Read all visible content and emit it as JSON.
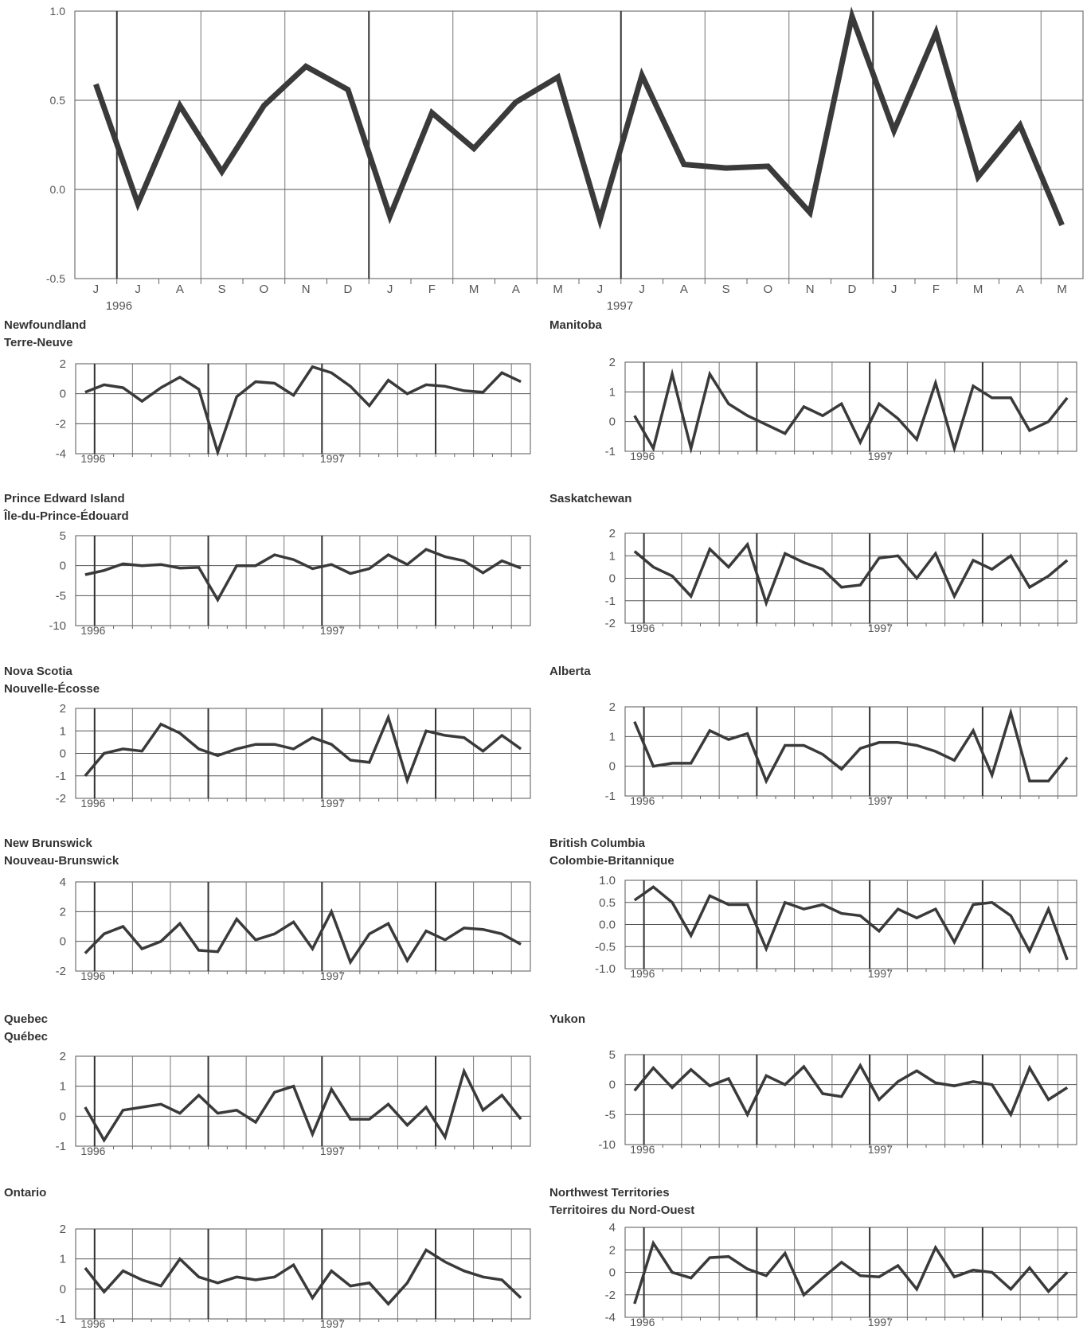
{
  "chart_data": [
    {
      "type": "line",
      "title": "",
      "categories": [
        "J",
        "J",
        "A",
        "S",
        "O",
        "N",
        "D",
        "J",
        "F",
        "M",
        "A",
        "M",
        "J",
        "J",
        "A",
        "S",
        "O",
        "N",
        "D",
        "J",
        "F",
        "M",
        "A",
        "M"
      ],
      "year_labels": [
        "1996",
        "1997"
      ],
      "ylim": [
        -0.5,
        1.0
      ],
      "yticks": [
        "1.0",
        "0.5",
        "0.0",
        "-0.5"
      ],
      "ytick_values": [
        1.0,
        0.5,
        0.0,
        -0.5
      ],
      "values": [
        0.59,
        -0.08,
        0.47,
        0.1,
        0.47,
        0.69,
        0.56,
        -0.15,
        0.43,
        0.23,
        0.49,
        0.63,
        -0.17,
        0.64,
        0.14,
        0.12,
        0.13,
        -0.13,
        0.97,
        0.33,
        0.88,
        0.07,
        0.36,
        -0.2
      ],
      "grid": true,
      "major_gridlines_after": [
        1,
        7,
        13,
        19
      ]
    },
    {
      "type": "line",
      "title": [
        "Newfoundland",
        "Terre-Neuve"
      ],
      "year_labels": [
        "1996",
        "1997"
      ],
      "ylim": [
        -4,
        2
      ],
      "yticks": [
        "2",
        "0",
        "-2",
        "-4"
      ],
      "ytick_values": [
        2,
        0,
        -2,
        -4
      ],
      "values": [
        0.1,
        0.6,
        0.4,
        -0.5,
        0.4,
        1.1,
        0.3,
        -3.9,
        -0.2,
        0.8,
        0.7,
        -0.1,
        1.8,
        1.4,
        0.5,
        -0.8,
        0.9,
        0.0,
        0.6,
        0.5,
        0.2,
        0.1,
        1.4,
        0.8
      ],
      "grid": true,
      "major_gridlines_after": [
        1,
        7,
        13,
        19
      ]
    },
    {
      "type": "line",
      "title": [
        "Manitoba"
      ],
      "year_labels": [
        "1996",
        "1997"
      ],
      "ylim": [
        -1,
        2
      ],
      "yticks": [
        "2",
        "1",
        "0",
        "-1"
      ],
      "ytick_values": [
        2,
        1,
        0,
        -1
      ],
      "values": [
        0.2,
        -0.9,
        1.6,
        -0.9,
        1.6,
        0.6,
        0.2,
        -0.1,
        -0.4,
        0.5,
        0.2,
        0.6,
        -0.7,
        0.6,
        0.1,
        -0.6,
        1.3,
        -0.9,
        1.2,
        0.8,
        0.8,
        -0.3,
        0.0,
        0.8
      ],
      "grid": true,
      "major_gridlines_after": [
        1,
        7,
        13,
        19
      ]
    },
    {
      "type": "line",
      "title": [
        "Prince Edward Island",
        "Île-du-Prince-Édouard"
      ],
      "year_labels": [
        "1996",
        "1997"
      ],
      "ylim": [
        -10,
        5
      ],
      "yticks": [
        "5",
        "0",
        "-5",
        "-10"
      ],
      "ytick_values": [
        5,
        0,
        -5,
        -10
      ],
      "values": [
        -1.5,
        -0.8,
        0.3,
        0.0,
        0.2,
        -0.4,
        -0.3,
        -5.7,
        0.0,
        0.0,
        1.8,
        1.0,
        -0.5,
        0.2,
        -1.3,
        -0.5,
        1.8,
        0.2,
        2.7,
        1.5,
        0.8,
        -1.2,
        0.8,
        -0.4
      ],
      "grid": true,
      "major_gridlines_after": [
        1,
        7,
        13,
        19
      ]
    },
    {
      "type": "line",
      "title": [
        "Saskatchewan"
      ],
      "year_labels": [
        "1996",
        "1997"
      ],
      "ylim": [
        -2,
        2
      ],
      "yticks": [
        "2",
        "1",
        "0",
        "-1",
        "-2"
      ],
      "ytick_values": [
        2,
        1,
        0,
        -1,
        -2
      ],
      "values": [
        1.2,
        0.5,
        0.1,
        -0.8,
        1.3,
        0.5,
        1.5,
        -1.1,
        1.1,
        0.7,
        0.4,
        -0.4,
        -0.3,
        0.9,
        1.0,
        0.0,
        1.1,
        -0.8,
        0.8,
        0.4,
        1.0,
        -0.4,
        0.1,
        0.8
      ],
      "grid": true,
      "major_gridlines_after": [
        1,
        7,
        13,
        19
      ]
    },
    {
      "type": "line",
      "title": [
        "Nova Scotia",
        "Nouvelle-Écosse"
      ],
      "year_labels": [
        "1996",
        "1997"
      ],
      "ylim": [
        -2,
        2
      ],
      "yticks": [
        "2",
        "1",
        "0",
        "-1",
        "-2"
      ],
      "ytick_values": [
        2,
        1,
        0,
        -1,
        -2
      ],
      "values": [
        -1.0,
        0.0,
        0.2,
        0.1,
        1.3,
        0.9,
        0.2,
        -0.1,
        0.2,
        0.4,
        0.4,
        0.2,
        0.7,
        0.4,
        -0.3,
        -0.4,
        1.6,
        -1.2,
        1.0,
        0.8,
        0.7,
        0.1,
        0.8,
        0.2
      ],
      "grid": true,
      "major_gridlines_after": [
        1,
        7,
        13,
        19
      ]
    },
    {
      "type": "line",
      "title": [
        "Alberta"
      ],
      "year_labels": [
        "1996",
        "1997"
      ],
      "ylim": [
        -1,
        2
      ],
      "yticks": [
        "2",
        "1",
        "0",
        "-1"
      ],
      "ytick_values": [
        2,
        1,
        0,
        -1
      ],
      "values": [
        1.5,
        0.0,
        0.1,
        0.1,
        1.2,
        0.9,
        1.1,
        -0.5,
        0.7,
        0.7,
        0.4,
        -0.1,
        0.6,
        0.8,
        0.8,
        0.7,
        0.5,
        0.2,
        1.2,
        -0.3,
        1.8,
        -0.5,
        -0.5,
        0.3
      ],
      "grid": true,
      "major_gridlines_after": [
        1,
        7,
        13,
        19
      ]
    },
    {
      "type": "line",
      "title": [
        "New Brunswick",
        "Nouveau-Brunswick"
      ],
      "year_labels": [
        "1996",
        "1997"
      ],
      "ylim": [
        -2,
        4
      ],
      "yticks": [
        "4",
        "2",
        "0",
        "-2"
      ],
      "ytick_values": [
        4,
        2,
        0,
        -2
      ],
      "values": [
        -0.8,
        0.5,
        1.0,
        -0.5,
        0.0,
        1.2,
        -0.6,
        -0.7,
        1.5,
        0.1,
        0.5,
        1.3,
        -0.5,
        2.0,
        -1.4,
        0.5,
        1.2,
        -1.3,
        0.7,
        0.1,
        0.9,
        0.8,
        0.5,
        -0.2
      ],
      "grid": true,
      "major_gridlines_after": [
        1,
        7,
        13,
        19
      ]
    },
    {
      "type": "line",
      "title": [
        "British Columbia",
        "Colombie-Britannique"
      ],
      "year_labels": [
        "1996",
        "1997"
      ],
      "ylim": [
        -1.0,
        1.0
      ],
      "yticks": [
        "1.0",
        "0.5",
        "0.0",
        "-0.5",
        "-1.0"
      ],
      "ytick_values": [
        1.0,
        0.5,
        0.0,
        -0.5,
        -1.0
      ],
      "values": [
        0.55,
        0.85,
        0.5,
        -0.25,
        0.65,
        0.45,
        0.45,
        -0.55,
        0.5,
        0.35,
        0.45,
        0.25,
        0.2,
        -0.15,
        0.35,
        0.15,
        0.35,
        -0.4,
        0.45,
        0.5,
        0.2,
        -0.6,
        0.35,
        -0.8
      ],
      "grid": true,
      "major_gridlines_after": [
        1,
        7,
        13,
        19
      ]
    },
    {
      "type": "line",
      "title": [
        "Quebec",
        "Québec"
      ],
      "year_labels": [
        "1996",
        "1997"
      ],
      "ylim": [
        -1,
        2
      ],
      "yticks": [
        "2",
        "1",
        "0",
        "-1"
      ],
      "ytick_values": [
        2,
        1,
        0,
        -1
      ],
      "values": [
        0.3,
        -0.8,
        0.2,
        0.3,
        0.4,
        0.1,
        0.7,
        0.1,
        0.2,
        -0.2,
        0.8,
        1.0,
        -0.6,
        0.9,
        -0.1,
        -0.1,
        0.4,
        -0.3,
        0.3,
        -0.7,
        1.5,
        0.2,
        0.7,
        -0.1
      ],
      "grid": true,
      "major_gridlines_after": [
        1,
        7,
        13,
        19
      ]
    },
    {
      "type": "line",
      "title": [
        "Yukon"
      ],
      "year_labels": [
        "1996",
        "1997"
      ],
      "ylim": [
        -10,
        5
      ],
      "yticks": [
        "5",
        "0",
        "-5",
        "-10"
      ],
      "ytick_values": [
        5,
        0,
        -5,
        -10
      ],
      "values": [
        -1.0,
        2.8,
        -0.5,
        2.5,
        -0.2,
        1.0,
        -5.0,
        1.5,
        0.0,
        3.0,
        -1.5,
        -2.0,
        3.2,
        -2.5,
        0.5,
        2.3,
        0.3,
        -0.2,
        0.5,
        0.0,
        -5.0,
        2.8,
        -2.5,
        -0.5
      ],
      "grid": true,
      "major_gridlines_after": [
        1,
        7,
        13,
        19
      ]
    },
    {
      "type": "line",
      "title": [
        "Ontario"
      ],
      "year_labels": [
        "1996",
        "1997"
      ],
      "ylim": [
        -1,
        2
      ],
      "yticks": [
        "2",
        "1",
        "0",
        "-1"
      ],
      "ytick_values": [
        2,
        1,
        0,
        -1
      ],
      "values": [
        0.7,
        -0.1,
        0.6,
        0.3,
        0.1,
        1.0,
        0.4,
        0.2,
        0.4,
        0.3,
        0.4,
        0.8,
        -0.3,
        0.6,
        0.1,
        0.2,
        -0.5,
        0.2,
        1.3,
        0.9,
        0.6,
        0.4,
        0.3,
        -0.3
      ],
      "grid": true,
      "major_gridlines_after": [
        1,
        7,
        13,
        19
      ]
    },
    {
      "type": "line",
      "title": [
        "Northwest Territories",
        "Territoires du Nord-Ouest"
      ],
      "year_labels": [
        "1996",
        "1997"
      ],
      "ylim": [
        -4,
        4
      ],
      "yticks": [
        "4",
        "2",
        "0",
        "-2",
        "-4"
      ],
      "ytick_values": [
        4,
        2,
        0,
        -2,
        -4
      ],
      "values": [
        -2.8,
        2.6,
        0.0,
        -0.5,
        1.3,
        1.4,
        0.3,
        -0.3,
        1.7,
        -2.0,
        -0.5,
        0.9,
        -0.3,
        -0.4,
        0.6,
        -1.5,
        2.2,
        -0.4,
        0.2,
        0.0,
        -1.5,
        0.4,
        -1.7,
        0.0
      ],
      "grid": true,
      "major_gridlines_after": [
        1,
        7,
        13,
        19
      ]
    }
  ]
}
